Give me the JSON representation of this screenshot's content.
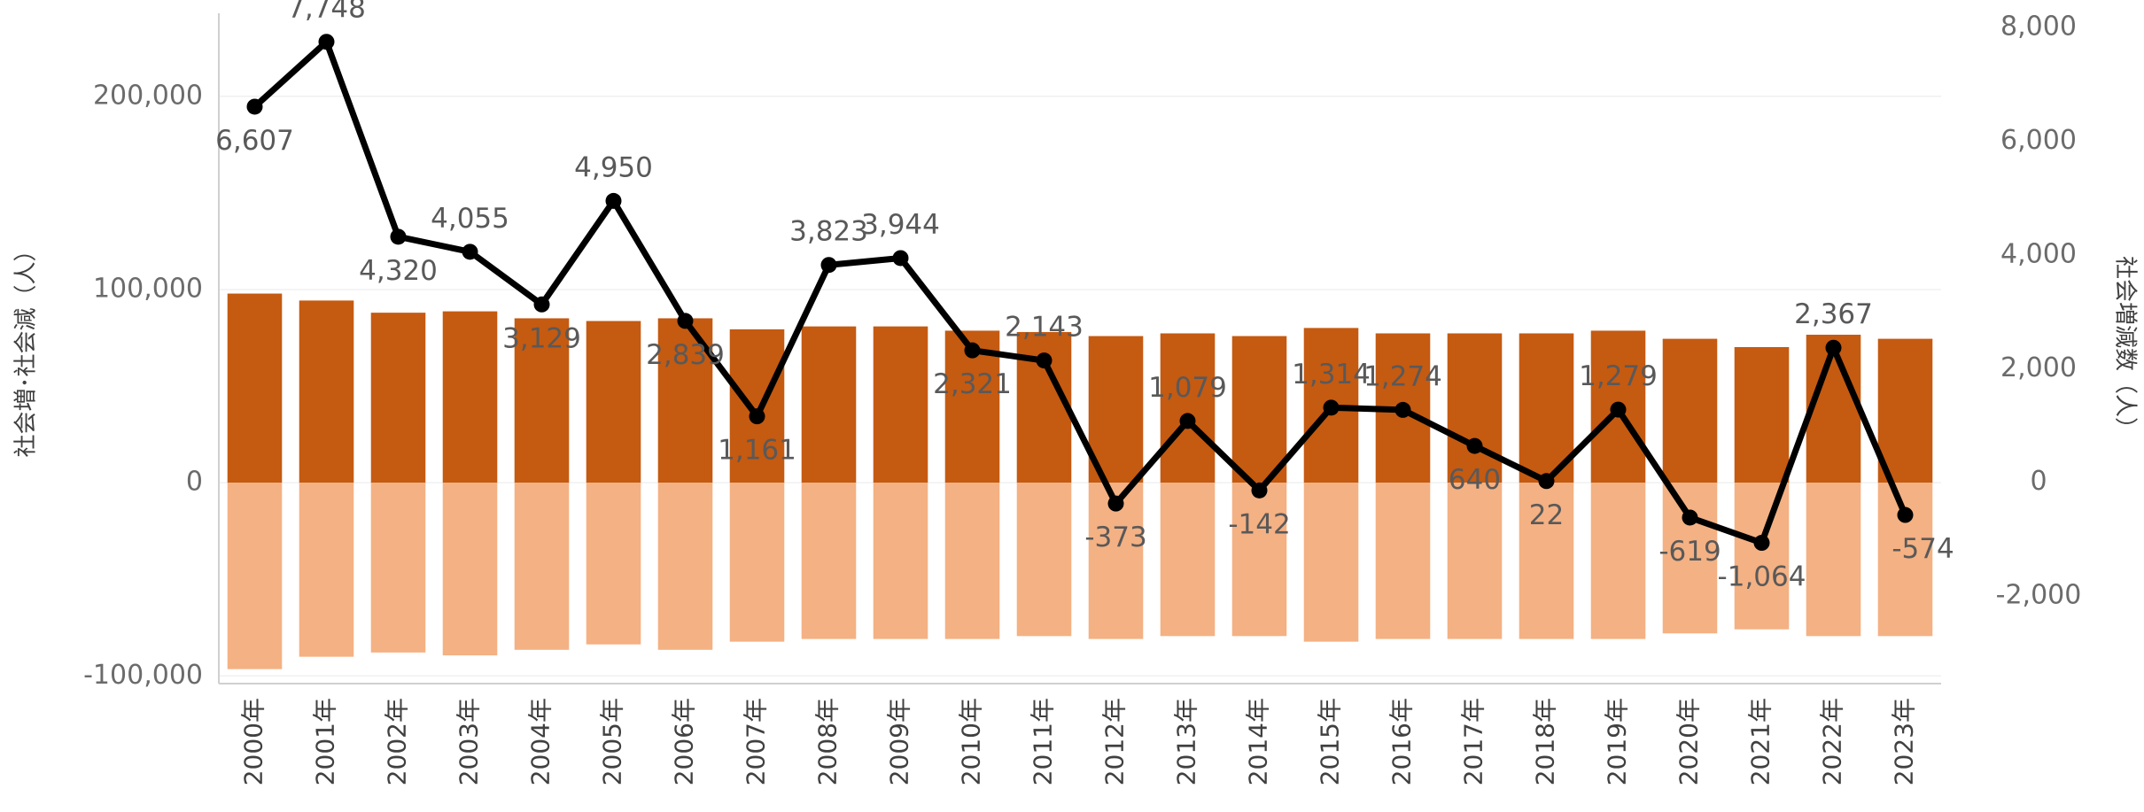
{
  "chart_data": {
    "type": "bar",
    "y_label": "社会増･社会減（人）",
    "y2_label": "社会増減数（人）",
    "categories": [
      "2000年",
      "2001年",
      "2002年",
      "2003年",
      "2004年",
      "2005年",
      "2006年",
      "2007年",
      "2008年",
      "2009年",
      "2010年",
      "2011年",
      "2012年",
      "2013年",
      "2014年",
      "2015年",
      "2016年",
      "2017年",
      "2018年",
      "2019年",
      "2020年",
      "2021年",
      "2022年",
      "2023年"
    ],
    "series": [
      {
        "type": "bar",
        "color": "#c55a11",
        "values": [
          97900,
          94300,
          88000,
          88700,
          85100,
          83700,
          85100,
          79400,
          80900,
          80900,
          78700,
          78000,
          75900,
          77300,
          75900,
          80100,
          77300,
          77300,
          77300,
          78700,
          74500,
          70200,
          76600,
          74500
        ]
      },
      {
        "type": "bar",
        "color": "#f4b183",
        "values": [
          -96500,
          -90100,
          -87900,
          -89400,
          -86500,
          -83700,
          -86500,
          -82300,
          -80900,
          -80900,
          -80900,
          -79400,
          -80900,
          -79400,
          -79400,
          -82300,
          -80900,
          -80900,
          -80900,
          -80900,
          -78000,
          -75900,
          -79400,
          -79400
        ]
      },
      {
        "type": "line",
        "axis": "y2",
        "color": "#000000",
        "values": [
          6607,
          7748,
          4320,
          4055,
          3129,
          4950,
          2839,
          1161,
          3823,
          3944,
          2321,
          2143,
          -373,
          1079,
          -142,
          1314,
          1274,
          640,
          22,
          1279,
          -619,
          -1064,
          2367,
          -574
        ],
        "value_labels": [
          "6,607",
          "7,748",
          "4,320",
          "4,055",
          "3,129",
          "4,950",
          "2,839",
          "1,161",
          "3,823",
          "3,944",
          "2,321",
          "2,143",
          "-373",
          "1,079",
          "-142",
          "1,314",
          "1,274",
          "640",
          "22",
          "1,279",
          "-619",
          "-1,064",
          "2,367",
          "-574"
        ]
      }
    ],
    "ylim": [
      -104000,
      243000
    ],
    "yticks": [
      {
        "value": -100000,
        "label": "-100,000"
      },
      0,
      {
        "value": 100000,
        "label": "100,000"
      },
      {
        "value": 200000,
        "label": "200,000"
      }
    ],
    "y2lim": [
      -3540,
      8250
    ],
    "y2ticks": [
      {
        "value": -2000,
        "label": "-2,000"
      },
      0,
      {
        "value": 2000,
        "label": "2,000"
      },
      {
        "value": 4000,
        "label": "4,000"
      },
      {
        "value": 6000,
        "label": "6,000"
      },
      {
        "value": 8000,
        "label": "8,000"
      }
    ],
    "grid": true
  }
}
